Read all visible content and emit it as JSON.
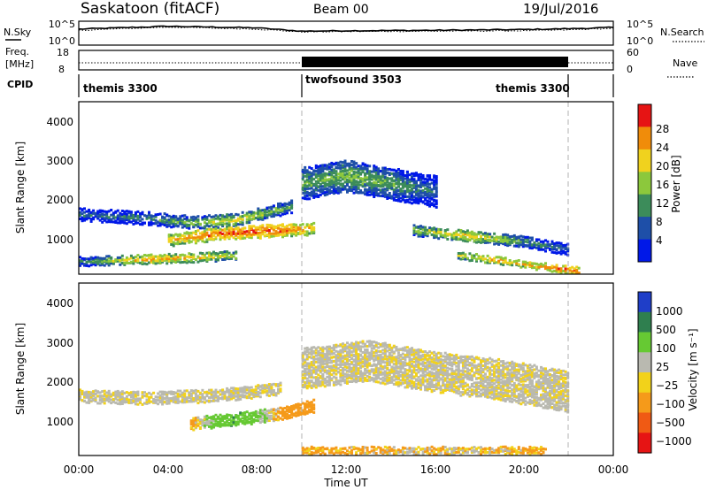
{
  "header": {
    "station": "Saskatoon (fitACF)",
    "beam": "Beam 00",
    "date": "19/Jul/2016"
  },
  "nsky_panel": {
    "left_label": "N.Sky",
    "left_ticks": [
      "10^5",
      "10^0"
    ],
    "right_ticks": [
      "10^5",
      "10^0"
    ],
    "right_label": "N.Search"
  },
  "freq_panel": {
    "left_label_1": "Freq.",
    "left_label_2": "[MHz]",
    "left_ticks": [
      "18",
      "8"
    ],
    "right_ticks": [
      "60",
      "0"
    ],
    "right_label": "Nave"
  },
  "cpid_panel": {
    "label": "CPID",
    "segments": [
      "themis 3300",
      "twofsound 3503",
      "themis 3300"
    ]
  },
  "x_axis": {
    "label": "Time UT",
    "ticks": [
      "00:00",
      "04:00",
      "08:00",
      "12:00",
      "16:00",
      "20:00",
      "00:00"
    ]
  },
  "power_panel": {
    "ylabel": "Slant Range [km]",
    "yticks": [
      "4000",
      "3000",
      "2000",
      "1000"
    ],
    "colorbar_label": "Power [dB]",
    "colorbar_ticks": [
      "28",
      "24",
      "20",
      "16",
      "12",
      "8",
      "4"
    ],
    "colors": [
      "#0018e8",
      "#1e4fa8",
      "#3c8c5a",
      "#8cc83c",
      "#f0d21e",
      "#f08c0a",
      "#e61414"
    ]
  },
  "velocity_panel": {
    "ylabel": "Slant Range [km]",
    "yticks": [
      "4000",
      "3000",
      "2000",
      "1000"
    ],
    "colorbar_label": "Velocity [m s⁻¹]",
    "colorbar_ticks": [
      "1000",
      "500",
      "100",
      "25",
      "−25",
      "−100",
      "−500",
      "−1000"
    ],
    "colors": [
      "#1f3ec8",
      "#2f7f4f",
      "#66c933",
      "#b9b9b0",
      "#f2d21a",
      "#f59a1a",
      "#f05a14",
      "#e61414"
    ]
  },
  "chart_data": [
    {
      "type": "line",
      "title": "Saskatoon (fitACF)",
      "series": [
        {
          "name": "N.Sky",
          "x": [
            "00:00",
            "04:00",
            "08:00",
            "10:00",
            "12:00",
            "16:00",
            "20:00",
            "22:00",
            "00:00"
          ],
          "values": [
            3.5,
            4.2,
            3.8,
            3.0,
            3.1,
            3.2,
            3.4,
            3.6,
            3.9
          ]
        },
        {
          "name": "N.Search",
          "x": [
            "00:00",
            "04:00",
            "08:00",
            "10:00",
            "12:00",
            "16:00",
            "20:00",
            "22:00",
            "00:00"
          ],
          "values": [
            3.2,
            4.0,
            3.5,
            2.8,
            2.9,
            3.0,
            3.1,
            3.3,
            3.7
          ]
        }
      ],
      "xlim": [
        "00:00",
        "24:00"
      ],
      "ylim": [
        0,
        5
      ],
      "log_scale": true
    },
    {
      "type": "line",
      "series": [
        {
          "name": "Freq.",
          "x": [
            "00:00",
            "10:00",
            "10:00",
            "22:00",
            "22:00",
            "24:00"
          ],
          "values": [
            10.5,
            10.5,
            10.5,
            10.5,
            10.5,
            10.5
          ]
        },
        {
          "name": "Nave",
          "x": [
            "00:00",
            "10:00",
            "10:00",
            "22:00",
            "22:00",
            "24:00"
          ],
          "values": [
            20,
            20,
            55,
            55,
            20,
            20
          ]
        }
      ],
      "ylim": [
        8,
        18
      ]
    },
    {
      "type": "table",
      "columns": [
        "CPID",
        "start",
        "end"
      ],
      "rows": [
        [
          "themis 3300",
          "00:00",
          "10:00"
        ],
        [
          "twofsound 3503",
          "10:00",
          "22:00"
        ],
        [
          "themis 3300",
          "22:00",
          "24:00"
        ]
      ]
    },
    {
      "type": "heatmap",
      "title": "Power [dB]",
      "xlabel": "Time UT",
      "ylabel": "Slant Range [km]",
      "xlim": [
        0,
        24
      ],
      "ylim": [
        180,
        4600
      ],
      "zlim": [
        0,
        30
      ],
      "bands": [
        {
          "t": [
            0,
            3,
            5,
            7,
            9.5
          ],
          "range": [
            1700,
            1600,
            1500,
            1550,
            1900
          ],
          "width": 280,
          "power": [
            10,
            12,
            16,
            20,
            14
          ]
        },
        {
          "t": [
            4,
            6,
            7.5,
            9,
            10.5
          ],
          "range": [
            1050,
            1200,
            1250,
            1300,
            1350
          ],
          "width": 300,
          "power": [
            22,
            26,
            28,
            27,
            22
          ]
        },
        {
          "t": [
            0,
            3,
            5,
            7
          ],
          "range": [
            500,
            550,
            600,
            650
          ],
          "width": 200,
          "power": [
            12,
            24,
            22,
            18
          ]
        },
        {
          "t": [
            10,
            12,
            14,
            16
          ],
          "range": [
            2500,
            2700,
            2500,
            2300
          ],
          "width": 800,
          "power": [
            14,
            16,
            14,
            10
          ]
        },
        {
          "t": [
            15,
            17.5,
            20,
            22
          ],
          "range": [
            1300,
            1150,
            1000,
            800
          ],
          "width": 250,
          "power": [
            16,
            22,
            14,
            10
          ]
        },
        {
          "t": [
            17,
            19,
            21,
            22.5
          ],
          "range": [
            650,
            500,
            350,
            250
          ],
          "width": 150,
          "power": [
            20,
            24,
            26,
            28
          ]
        }
      ]
    },
    {
      "type": "heatmap",
      "title": "Velocity [m s⁻¹]",
      "xlabel": "Time UT",
      "ylabel": "Slant Range [km]",
      "xlim": [
        0,
        24
      ],
      "ylim": [
        180,
        4600
      ],
      "zlim": [
        -1000,
        1000
      ],
      "bands": [
        {
          "t": [
            0,
            3,
            6,
            9
          ],
          "range": [
            1700,
            1650,
            1700,
            1900
          ],
          "width": 300,
          "velocity": [
            0,
            0,
            0,
            0
          ]
        },
        {
          "t": [
            5,
            7,
            9,
            10.5
          ],
          "range": [
            1000,
            1100,
            1250,
            1450
          ],
          "width": 300,
          "velocity": [
            -100,
            300,
            -100,
            -200
          ]
        },
        {
          "t": [
            10,
            13,
            16,
            19,
            22
          ],
          "range": [
            2400,
            2600,
            2300,
            2100,
            1800
          ],
          "width": 1000,
          "velocity": [
            0,
            0,
            0,
            0,
            0
          ]
        },
        {
          "t": [
            10,
            14,
            18,
            21
          ],
          "range": [
            300,
            300,
            300,
            300
          ],
          "width": 150,
          "velocity": [
            -100,
            -50,
            -30,
            -100
          ]
        }
      ]
    }
  ]
}
